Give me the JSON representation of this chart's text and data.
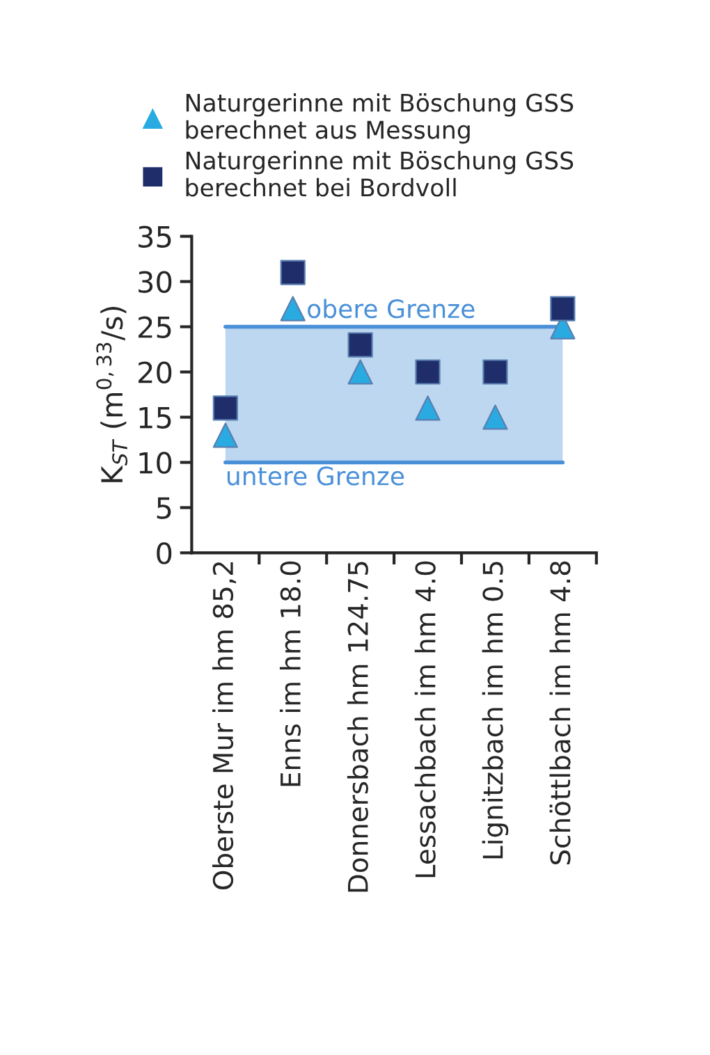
{
  "chart_data": {
    "type": "scatter",
    "ylabel": "K$_{ST}$ (m$^{0,33}$/s)",
    "categories": [
      "Oberste Mur im hm 85,2",
      "Enns im hm 18.0",
      "Donnersbach hm 124.75",
      "Lessachbach im hm 4.0",
      "Lignitzbach im hm 0.5",
      "Schöttlbach im hm 4.8"
    ],
    "series": [
      {
        "name": "Naturgerinne mit Böschung GSS\nberechnet aus Messung",
        "color": "#29abe2",
        "marker": "triangle",
        "values": [
          13,
          27,
          20,
          16,
          15,
          25
        ]
      },
      {
        "name": "Naturgerinne mit Böschung GSS\nberechnet bei Bordvoll",
        "color": "#1f2e6b",
        "marker": "square",
        "values": [
          16,
          31,
          23,
          20,
          20,
          27
        ]
      }
    ],
    "bands": [
      {
        "axis": "y",
        "from": 10,
        "to": 25,
        "color": "#bcd7ef"
      }
    ],
    "ref_lines": [
      {
        "axis": "y",
        "value": 25,
        "label": "obere Grenze",
        "color": "#4a90d9"
      },
      {
        "axis": "y",
        "value": 10,
        "label": "untere Grenze",
        "color": "#4a90d9"
      }
    ],
    "ylim": [
      0,
      35
    ],
    "yticks": [
      0,
      5,
      10,
      15,
      20,
      25,
      30,
      35
    ],
    "grid": false,
    "legend": "top"
  }
}
